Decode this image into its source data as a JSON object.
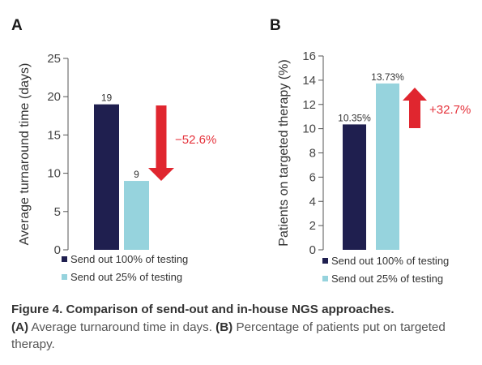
{
  "colors": {
    "bar_100": "#1f1f4f",
    "bar_25": "#96d3dd",
    "arrow": "#e0262f",
    "axis": "#555555"
  },
  "chart_data": [
    {
      "type": "bar",
      "panel_label": "A",
      "ylabel": "Average turnaround time (days)",
      "ylim": [
        0,
        25
      ],
      "yticks": [
        "0",
        "5",
        "10",
        "15",
        "20",
        "25"
      ],
      "series": [
        {
          "name": "Send out 100% of testing",
          "value": 19,
          "label": "19",
          "color": "#1f1f4f"
        },
        {
          "name": "Send out 25% of testing",
          "value": 9,
          "label": "9",
          "color": "#96d3dd"
        }
      ],
      "change": {
        "label": "−52.6%",
        "direction": "down"
      },
      "legend_placement": "bottom"
    },
    {
      "type": "bar",
      "panel_label": "B",
      "ylabel": "Patients on targeted therapy (%)",
      "ylim": [
        0,
        16
      ],
      "yticks": [
        "0",
        "2",
        "4",
        "6",
        "8",
        "10",
        "12",
        "14",
        "16"
      ],
      "series": [
        {
          "name": "Send out 100% of testing",
          "value": 10.35,
          "label": "10.35%",
          "color": "#1f1f4f"
        },
        {
          "name": "Send out 25% of testing",
          "value": 13.73,
          "label": "13.73%",
          "color": "#96d3dd"
        }
      ],
      "change": {
        "label": "+32.7%",
        "direction": "up"
      },
      "legend_placement": "bottom"
    }
  ],
  "caption": {
    "title": "Figure 4. Comparison of send-out and in-house NGS approaches.",
    "part_a_letter": "(A)",
    "part_a_text": " Average turnaround time in days. ",
    "part_b_letter": "(B)",
    "part_b_text": " Percentage of patients put on targeted therapy."
  }
}
